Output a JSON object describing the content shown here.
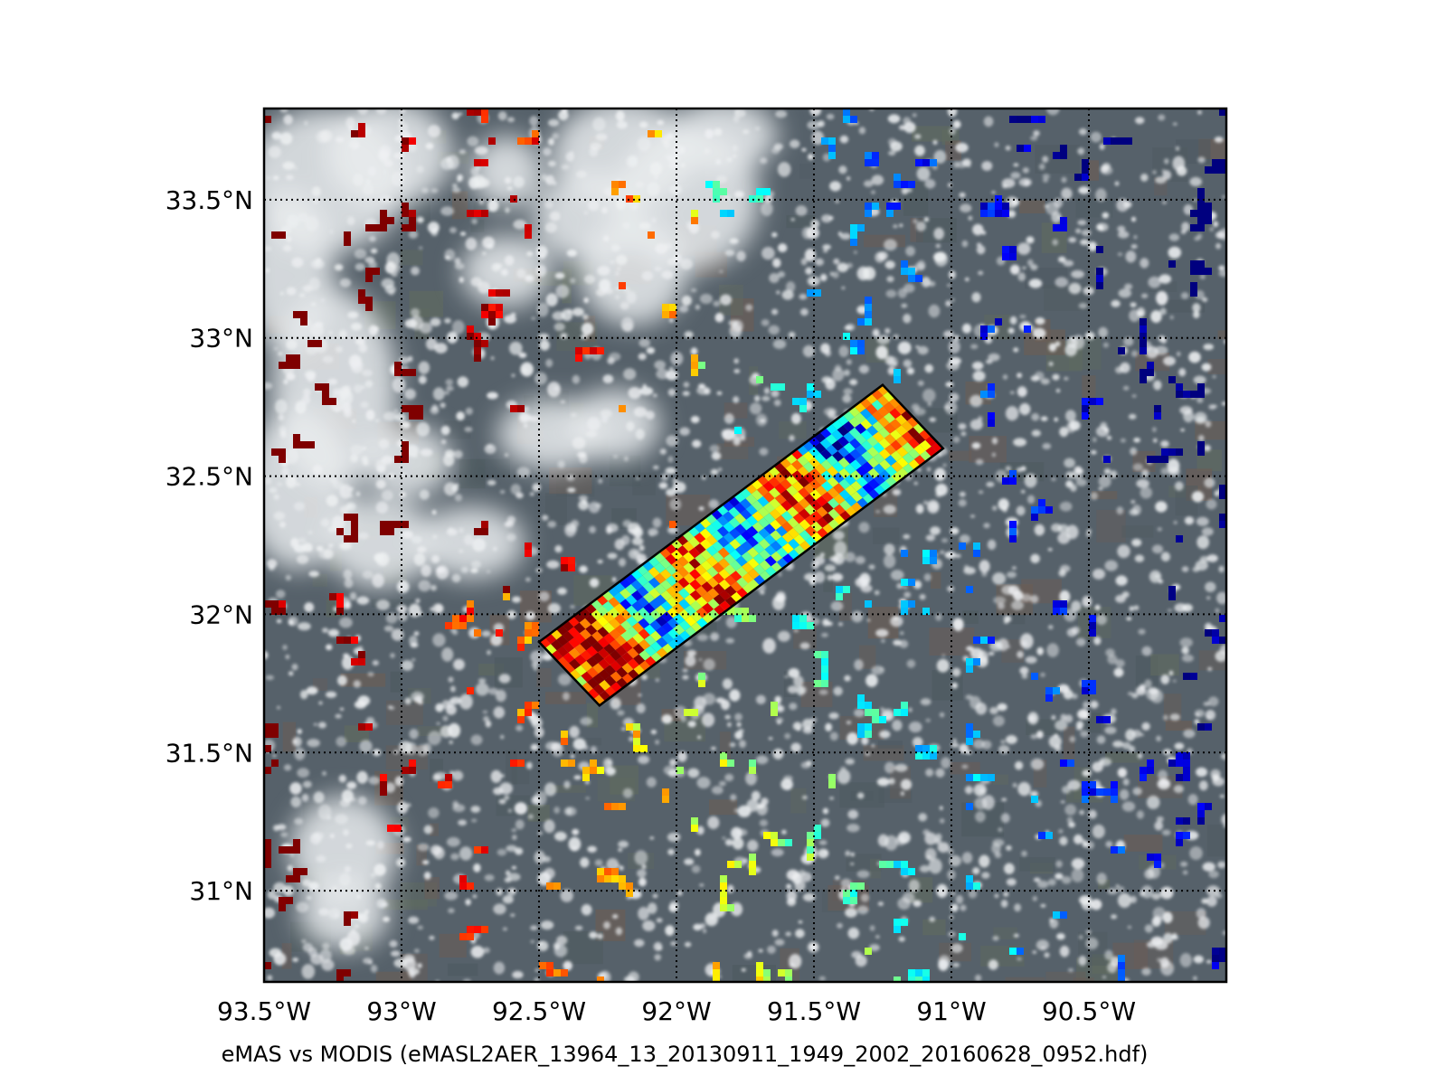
{
  "caption": "eMAS vs MODIS (eMASL2AER_13964_13_20130911_1949_2002_20160628_0952.hdf)",
  "map": {
    "lon_range": [
      -93.5,
      -90.0
    ],
    "lat_range": [
      30.67,
      33.83
    ],
    "grid": true,
    "lon_ticks": [
      {
        "value": -93.5,
        "label": "93.5°W"
      },
      {
        "value": -93.0,
        "label": "93°W"
      },
      {
        "value": -92.5,
        "label": "92.5°W"
      },
      {
        "value": -92.0,
        "label": "92°W"
      },
      {
        "value": -91.5,
        "label": "91.5°W"
      },
      {
        "value": -91.0,
        "label": "91°W"
      },
      {
        "value": -90.5,
        "label": "90.5°W"
      }
    ],
    "lat_ticks": [
      {
        "value": 33.5,
        "label": "33.5°N"
      },
      {
        "value": 33.0,
        "label": "33°N"
      },
      {
        "value": 32.5,
        "label": "32.5°N"
      },
      {
        "value": 32.0,
        "label": "32°N"
      },
      {
        "value": 31.5,
        "label": "31.5°N"
      },
      {
        "value": 31.0,
        "label": "31°N"
      }
    ],
    "swath_corners": [
      {
        "lon": -92.5,
        "lat": 31.9
      },
      {
        "lon": -91.25,
        "lat": 32.83
      },
      {
        "lon": -91.03,
        "lat": 32.6
      },
      {
        "lon": -92.28,
        "lat": 31.67
      }
    ],
    "colors": {
      "background_ground": "#556066",
      "cloud": "#e9ecef",
      "frame": "#000000",
      "colormap": [
        "#00007f",
        "#0000ff",
        "#007fff",
        "#00ffff",
        "#7fff7f",
        "#ffff00",
        "#ff7f00",
        "#ff0000",
        "#7f0000"
      ]
    }
  }
}
